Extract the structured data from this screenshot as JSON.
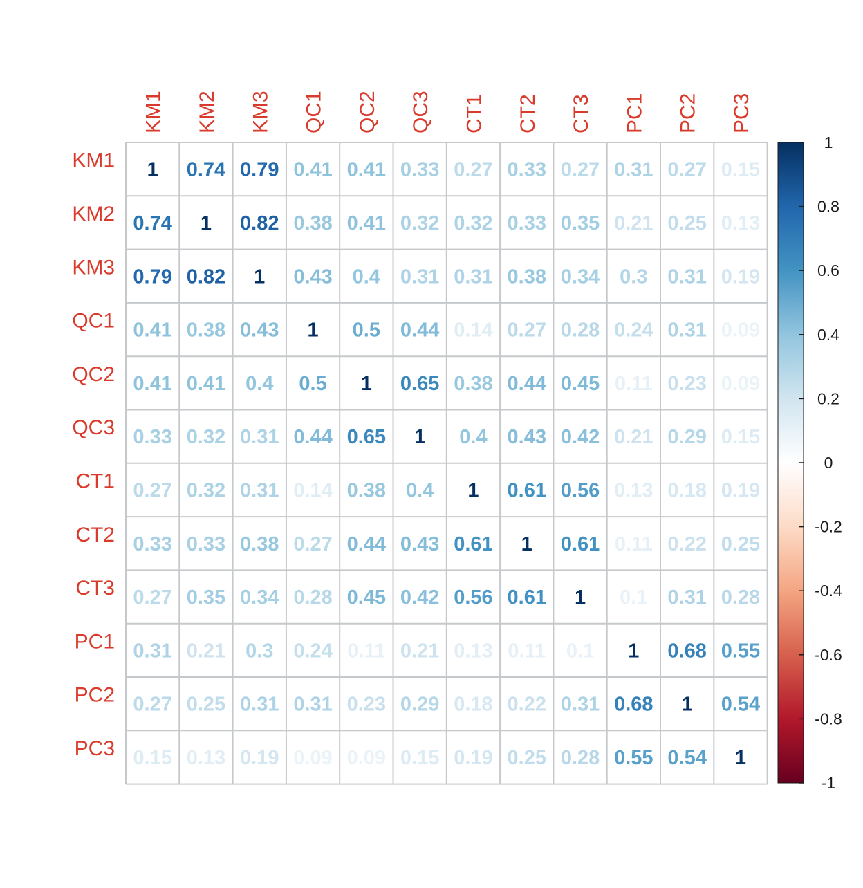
{
  "chart_data": {
    "type": "heatmap",
    "variables": [
      "KM1",
      "KM2",
      "KM3",
      "QC1",
      "QC2",
      "QC3",
      "CT1",
      "CT2",
      "CT3",
      "PC1",
      "PC2",
      "PC3"
    ],
    "matrix": [
      [
        1,
        0.74,
        0.79,
        0.41,
        0.41,
        0.33,
        0.27,
        0.33,
        0.27,
        0.31,
        0.27,
        0.15
      ],
      [
        0.74,
        1,
        0.82,
        0.38,
        0.41,
        0.32,
        0.32,
        0.33,
        0.35,
        0.21,
        0.25,
        0.13
      ],
      [
        0.79,
        0.82,
        1,
        0.43,
        0.4,
        0.31,
        0.31,
        0.38,
        0.34,
        0.3,
        0.31,
        0.19
      ],
      [
        0.41,
        0.38,
        0.43,
        1,
        0.5,
        0.44,
        0.14,
        0.27,
        0.28,
        0.24,
        0.31,
        0.09
      ],
      [
        0.41,
        0.41,
        0.4,
        0.5,
        1,
        0.65,
        0.38,
        0.44,
        0.45,
        0.11,
        0.23,
        0.09
      ],
      [
        0.33,
        0.32,
        0.31,
        0.44,
        0.65,
        1,
        0.4,
        0.43,
        0.42,
        0.21,
        0.29,
        0.15
      ],
      [
        0.27,
        0.32,
        0.31,
        0.14,
        0.38,
        0.4,
        1,
        0.61,
        0.56,
        0.13,
        0.18,
        0.19
      ],
      [
        0.33,
        0.33,
        0.38,
        0.27,
        0.44,
        0.43,
        0.61,
        1,
        0.61,
        0.11,
        0.22,
        0.25
      ],
      [
        0.27,
        0.35,
        0.34,
        0.28,
        0.45,
        0.42,
        0.56,
        0.61,
        1,
        0.1,
        0.31,
        0.28
      ],
      [
        0.31,
        0.21,
        0.3,
        0.24,
        0.11,
        0.21,
        0.13,
        0.11,
        0.1,
        1,
        0.68,
        0.55
      ],
      [
        0.27,
        0.25,
        0.31,
        0.31,
        0.23,
        0.29,
        0.18,
        0.22,
        0.31,
        0.68,
        1,
        0.54
      ],
      [
        0.15,
        0.13,
        0.19,
        0.09,
        0.09,
        0.15,
        0.19,
        0.25,
        0.28,
        0.55,
        0.54,
        1
      ]
    ],
    "range": [
      -1,
      1
    ],
    "colorbar_ticks": [
      1,
      0.8,
      0.6,
      0.4,
      0.2,
      0,
      -0.2,
      -0.4,
      -0.6,
      -0.8,
      -1
    ],
    "colorbar_tick_labels": [
      "1",
      "0.8",
      "0.6",
      "0.4",
      "0.2",
      "0",
      "-0.2",
      "-0.4",
      "-0.6",
      "-0.8",
      "-1"
    ],
    "colorscale": [
      "#67001F",
      "#B2182B",
      "#D6604D",
      "#F4A582",
      "#FDDBC7",
      "#FFFFFF",
      "#D1E5F0",
      "#92C5DE",
      "#4393C3",
      "#2166AC",
      "#053061"
    ],
    "label_color": "#D93A2B",
    "grid_color": "#C6C9CC",
    "legend": "right",
    "title": ""
  }
}
